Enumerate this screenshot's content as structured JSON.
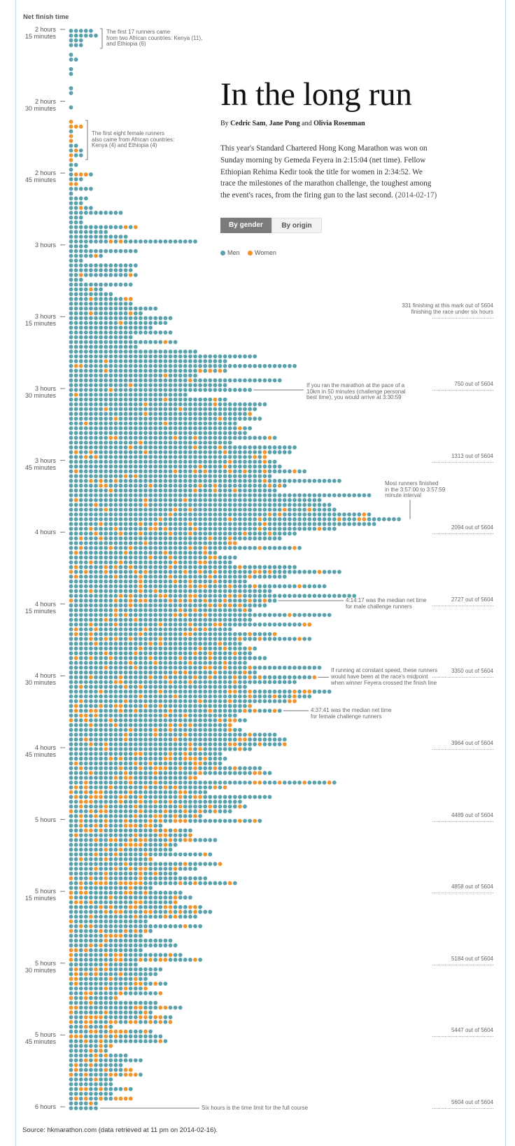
{
  "header": {
    "title": "In the long run",
    "byline_by": "By",
    "authors": [
      "Cedric Sam",
      "Jane Pong",
      "Olivia Rosenman"
    ],
    "byline_sep": ",",
    "byline_and": "and",
    "intro_lines": [
      "This year's Standard Chartered Hong Kong Marathon was won on",
      "Sunday morning by Gemeda Feyera in 2:15:04 (net time). Fellow",
      "Ethiopian Rehima Kedir took the title for women in 2:34:52. We",
      "trace the milestones of the marathon challenge, the toughest among",
      "the event's races, from the firing gun to the last second."
    ],
    "intro_date": "(2014-02-17)"
  },
  "toggle": {
    "by_gender": "By gender",
    "by_origin": "By origin",
    "active": "by_gender"
  },
  "legend": {
    "men": "Men",
    "women": "Women"
  },
  "colors": {
    "men": "#5aa1ae",
    "women": "#f0952e",
    "border": "#c5d8e6",
    "button_active": "#7b7b7b"
  },
  "source": "Source: hkmarathon.com (data retrieved at 11 pm on 2014-02-16).",
  "chart_data": {
    "type": "dot-histogram",
    "ylabel": "Net finish time",
    "y_range": [
      "2:15",
      "6:00"
    ],
    "bin": "1 minute",
    "y_ticks": [
      [
        "2 hours",
        "15 minutes"
      ],
      [
        "2 hours",
        "30 minutes"
      ],
      [
        "2 hours",
        "45 minutes"
      ],
      [
        "3 hours"
      ],
      [
        "3 hours",
        "15 minutes"
      ],
      [
        "3 hours",
        "30 minutes"
      ],
      [
        "3 hours",
        "45 minutes"
      ],
      [
        "4 hours"
      ],
      [
        "4 hours",
        "15 minutes"
      ],
      [
        "4 hours",
        "30 minutes"
      ],
      [
        "4 hours",
        "45 minutes"
      ],
      [
        "5 hours"
      ],
      [
        "5 hours",
        "15 minutes"
      ],
      [
        "5 hours",
        "30 minutes"
      ],
      [
        "5 hours",
        "45 minutes"
      ],
      [
        "6 hours"
      ]
    ],
    "runners_per_minute": [
      5,
      6,
      3,
      3,
      0,
      1,
      2,
      0,
      1,
      1,
      0,
      0,
      1,
      1,
      0,
      0,
      1,
      0,
      0,
      1,
      3,
      1,
      1,
      1,
      2,
      3,
      3,
      1,
      2,
      1,
      5,
      3,
      2,
      5,
      1,
      4,
      3,
      5,
      11,
      3,
      3,
      14,
      8,
      12,
      26,
      4,
      14,
      7,
      3,
      14,
      13,
      14,
      3,
      13,
      7,
      9,
      13,
      13,
      18,
      15,
      21,
      20,
      17,
      21,
      13,
      22,
      14,
      26,
      38,
      32,
      46,
      32,
      26,
      43,
      32,
      37,
      24,
      32,
      40,
      38,
      37,
      39,
      34,
      37,
      36,
      42,
      33,
      46,
      45,
      40,
      42,
      43,
      48,
      41,
      55,
      44,
      42,
      61,
      51,
      53,
      54,
      61,
      67,
      62,
      54,
      46,
      43,
      34,
      47,
      30,
      34,
      33,
      46,
      55,
      44,
      36,
      52,
      41,
      58,
      42,
      40,
      37,
      53,
      37,
      49,
      33,
      42,
      49,
      35,
      38,
      37,
      40,
      36,
      51,
      38,
      50,
      46,
      36,
      53,
      49,
      46,
      37,
      43,
      34,
      36,
      33,
      35,
      42,
      44,
      44,
      37,
      31,
      32,
      31,
      39,
      41,
      26,
      54,
      32,
      28,
      41,
      35,
      36,
      33,
      27,
      39,
      19,
      25,
      25,
      30,
      22,
      21,
      29,
      17,
      31,
      26,
      22,
      28,
      34,
      17,
      23,
      25,
      22,
      27,
      29,
      26,
      16,
      27,
      17,
      15,
      21,
      22,
      15,
      23,
      27,
      14,
      19,
      18,
      16,
      20,
      16,
      19,
      10,
      18,
      23,
      17,
      21,
      21,
      9,
      17,
      19,
      20,
      9,
      8,
      12,
      15,
      11,
      13,
      15,
      9,
      9,
      13,
      9,
      13,
      6,
      6
    ],
    "women_per_minute": [
      0,
      0,
      0,
      0,
      0,
      0,
      0,
      0,
      0,
      0,
      0,
      0,
      0,
      0,
      0,
      0,
      0,
      0,
      0,
      1,
      3,
      0,
      1,
      1,
      0,
      1,
      1,
      1,
      0,
      0,
      3,
      0,
      2,
      0,
      0,
      0,
      0,
      1,
      0,
      0,
      0,
      2,
      0,
      0,
      2,
      0,
      0,
      1,
      0,
      0,
      0,
      2,
      0,
      0,
      1,
      0,
      3,
      0,
      0,
      2,
      0,
      1,
      0,
      0,
      0,
      1,
      0,
      0,
      0,
      1,
      2,
      4,
      1,
      1,
      1,
      1,
      1,
      2,
      2,
      2,
      2,
      2,
      2,
      1,
      0,
      5,
      1,
      3,
      5,
      4,
      2,
      2,
      8,
      2,
      4,
      7,
      4,
      0,
      3,
      2,
      5,
      4,
      6,
      5,
      8,
      7,
      4,
      3,
      7,
      4,
      4,
      5,
      6,
      12,
      6,
      4,
      7,
      3,
      8,
      12,
      5,
      4,
      6,
      2,
      8,
      5,
      7,
      8,
      4,
      4,
      5,
      6,
      4,
      6,
      4,
      10,
      5,
      3,
      8,
      5,
      6,
      7,
      10,
      5,
      6,
      6,
      4,
      4,
      5,
      7,
      4,
      4,
      8,
      5,
      10,
      6,
      5,
      8,
      8,
      7,
      10,
      7,
      6,
      9,
      7,
      10,
      8,
      6,
      5,
      9,
      5,
      2,
      4,
      3,
      3,
      6,
      3,
      4,
      12,
      2,
      6,
      3,
      6,
      8,
      8,
      4,
      1,
      3,
      5,
      4,
      1,
      2,
      3,
      5,
      8,
      1,
      3,
      4,
      4,
      4,
      3,
      4,
      3,
      1,
      6,
      3,
      8,
      10,
      2,
      7,
      5,
      3,
      2,
      2,
      2,
      2,
      2,
      4,
      7,
      1,
      0,
      4,
      0,
      7,
      1,
      0
    ],
    "milestones": [
      {
        "time": "3:15",
        "lines": [
          "331 finishing at this mark out of 5604",
          "finishing the race under six hours"
        ]
      },
      {
        "time": "3:30",
        "lines": [
          "750 out of 5604"
        ]
      },
      {
        "time": "3:45",
        "lines": [
          "1313 out of 5604"
        ]
      },
      {
        "time": "4:00",
        "lines": [
          "2094 out of 5604"
        ]
      },
      {
        "time": "4:15",
        "lines": [
          "2727 out of 5604"
        ]
      },
      {
        "time": "4:30",
        "lines": [
          "3350 out of 5604"
        ]
      },
      {
        "time": "4:45",
        "lines": [
          "3964 out of 5604"
        ]
      },
      {
        "time": "5:00",
        "lines": [
          "4489 out of 5604"
        ]
      },
      {
        "time": "5:15",
        "lines": [
          "4858 out of 5604"
        ]
      },
      {
        "time": "5:30",
        "lines": [
          "5184 out of 5604"
        ]
      },
      {
        "time": "5:45",
        "lines": [
          "5447 out of 5604"
        ]
      },
      {
        "time": "6:00",
        "lines": [
          "5604 out of 5604"
        ]
      }
    ],
    "annotations": {
      "first17": [
        "The first 17 runners came",
        "from two African countries: Kenya (11),",
        "and Ethiopia (6)"
      ],
      "first8women": [
        "The first eight female runners",
        "also came from African countries:",
        "Kenya (4) and Ethiopia (4)"
      ],
      "pace10k": [
        "If you ran the marathon at the pace of a",
        "10km in 50 minutes (challenge personal",
        "best time), you would arrive at 3:30:59"
      ],
      "most": [
        "Most runners finished",
        "in the 3:57:00 to 3:57:59",
        "minute interval"
      ],
      "median_male": [
        "4:14:17 was the median net time",
        "for male challenge runners"
      ],
      "midpoint": [
        "If running at constant speed, these runners",
        "would have been at the race's midpoint",
        "when winner Feyera crossed the finish line"
      ],
      "median_female": [
        "4:37:41 was the median net time",
        "for female challenge runners"
      ],
      "six_hours": [
        "Six hours is the time limit for the full course"
      ]
    }
  }
}
